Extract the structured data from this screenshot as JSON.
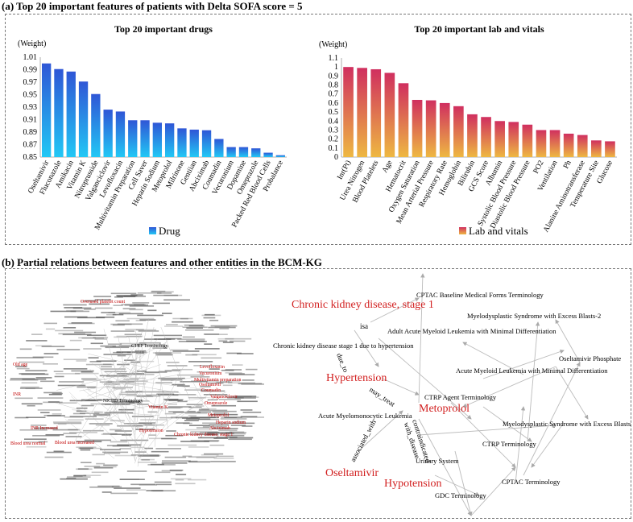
{
  "section_a": {
    "title": "(a) Top 20 important features of patients with Delta SOFA score = 5"
  },
  "section_b": {
    "title": "(b) Partial relations between features and other entities in the BCM-KG"
  },
  "chart_data": [
    {
      "type": "bar",
      "title": "Top 20 important drugs",
      "ylabel": "(Weight)",
      "legend": "Drug",
      "legend_position": "bottom-center",
      "grid": false,
      "ylim": [
        0.85,
        1.01
      ],
      "yticks": [
        "1.01",
        "0.99",
        "0.97",
        "0.95",
        "0.93",
        "0.91",
        "0.89",
        "0.87",
        "0.85"
      ],
      "colors": {
        "top": "#2f56d6",
        "bottom": "#22c8f5"
      },
      "categories": [
        "Oseltamivir",
        "Fluconazole",
        "Amikacin",
        "Vitamin K",
        "Nitroprusside",
        "Valganciclovir",
        "Levofloxacin",
        "Multivitamin Preparation",
        "Cell Saver",
        "Heparin Sodium",
        "Metoprolol",
        "Milrinone",
        "Gentiian",
        "Abciximab",
        "Coumadin",
        "Vecuronium",
        "Dopamine",
        "Omeprazole",
        "Packed Red Blood Cells",
        "Probalance"
      ],
      "values": [
        1.0,
        0.991,
        0.987,
        0.971,
        0.951,
        0.926,
        0.923,
        0.909,
        0.909,
        0.905,
        0.904,
        0.896,
        0.894,
        0.893,
        0.879,
        0.866,
        0.866,
        0.864,
        0.857,
        0.853
      ]
    },
    {
      "type": "bar",
      "title": "Top 20 important lab and vitals",
      "ylabel": "(Weight)",
      "legend": "Lab and vitals",
      "legend_position": "bottom-center",
      "grid": false,
      "ylim": [
        0,
        1.1
      ],
      "yticks": [
        "1.1",
        "1",
        "0.9",
        "0.8",
        "0.7",
        "0.6",
        "0.5",
        "0.4",
        "0.3",
        "0.2",
        "0.1",
        "0"
      ],
      "colors": {
        "top": "#d02f5f",
        "bottom": "#eeb842"
      },
      "categories": [
        "Inr(Pt)",
        "Urea Nitrogen",
        "Blood Platelets",
        "Age",
        "Hematocrit",
        "Oxygen Saturation",
        "Mean Arterial Pressure",
        "Respiratory Rate",
        "Hemoglobin",
        "Bilirubin",
        "GCS Score",
        "Albumin",
        "Systolic Blood Pressure",
        "Diastolic Blood Pressure",
        "PO2",
        "Ventilation",
        "Ph",
        "Alanine Aminotransferase",
        "Temperature Site",
        "Glucose"
      ],
      "values": [
        1.0,
        0.99,
        0.975,
        0.935,
        0.82,
        0.635,
        0.63,
        0.6,
        0.565,
        0.475,
        0.445,
        0.4,
        0.39,
        0.36,
        0.3,
        0.3,
        0.26,
        0.245,
        0.185,
        0.175
      ]
    }
  ],
  "kg_cloud": {
    "highlight_labels": [
      "Overused platelet count",
      "Old age",
      "INR",
      "Blood urea normal",
      "INR Increased",
      "Blood urea increased",
      "Hypotension",
      "Vitamin K",
      "Chronic kidney disease, stage 1",
      "Levofloxacin",
      "Vecuronium",
      "Multivitamin preparation",
      "Oseltamivir",
      "Coumadin",
      "Valganciclovir",
      "Omeprazole",
      "Metoprolol",
      "Heparin sodium",
      "Abciximab"
    ],
    "black_labels": [
      "CTRP Terminology",
      "NICHD Terminology"
    ]
  },
  "kg_graph": {
    "nodes": {
      "cktd1": "Chronic kidney disease, stage 1",
      "htn": "Hypertension",
      "meto": "Metoprolol",
      "osel": "Oseltamivir",
      "hypo": "Hypotension",
      "cptac_baseline": "CPTAC Baseline Medical Forms Terminology",
      "mds2": "Myelodysplastic Syndrome with Excess Blasts-2",
      "aml_min_adult": "Adult Acute Myeloid Leukemia with Minimal Differentiation",
      "ckd_htn": "Chronic kidney disease stage 1 due to hypertension",
      "osel_phos": "Oseltamivir Phosphate",
      "aml_min": "Acute Myeloid Leukemia with Minimal Differentiation",
      "ctrp_agent": "CTRP Agent Terminology",
      "amml": "Acute Myelomonocytic Leukemia",
      "mds": "Myelodysplastic Syndrome with Excess Blasts",
      "ctrp": "CTRP Terminology",
      "urinary": "Urinary System",
      "cptac": "CPTAC Terminology",
      "gdc": "GDC Terminology"
    },
    "edge_labels": {
      "isa": "isa",
      "due_to": "due_to",
      "may_treat": "may_treat",
      "associated_with": "associated_with",
      "contraindicated": "contraindicated_with_disease"
    }
  }
}
